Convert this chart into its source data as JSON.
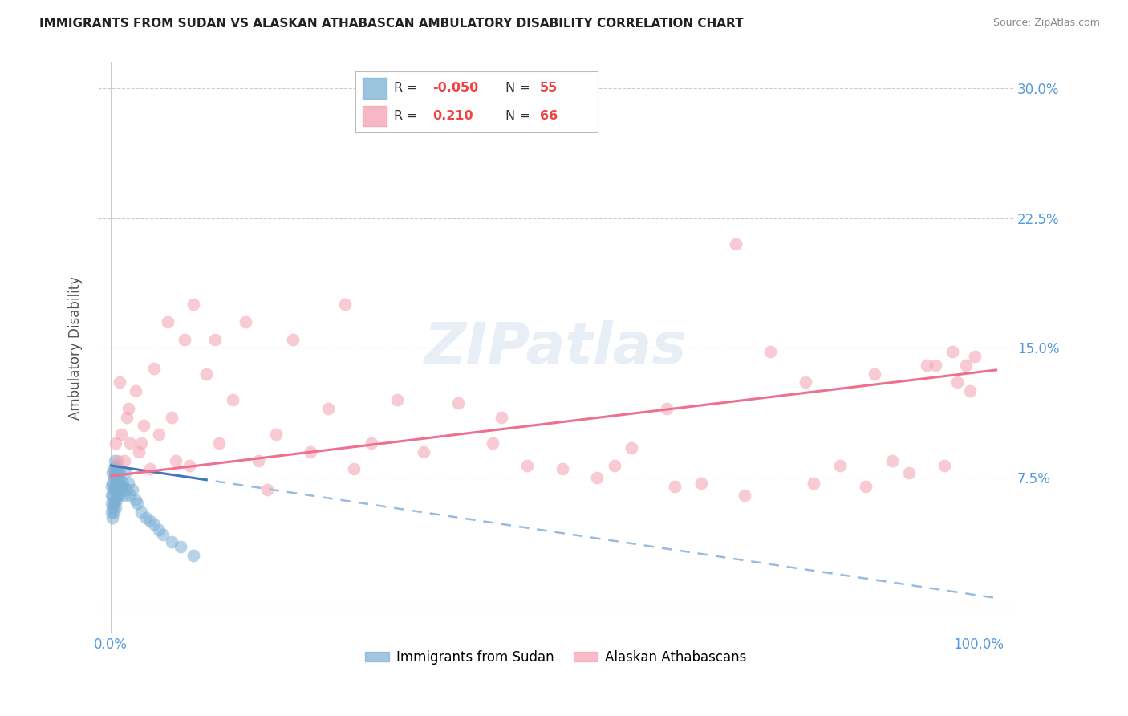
{
  "title": "IMMIGRANTS FROM SUDAN VS ALASKAN ATHABASCAN AMBULATORY DISABILITY CORRELATION CHART",
  "source": "Source: ZipAtlas.com",
  "ylabel": "Ambulatory Disability",
  "x_tick_labels": [
    "0.0%",
    "",
    "",
    "",
    "",
    "100.0%"
  ],
  "y_tick_labels": [
    "",
    "7.5%",
    "15.0%",
    "22.5%",
    "30.0%"
  ],
  "y_ticks": [
    0.0,
    0.075,
    0.15,
    0.225,
    0.3
  ],
  "xlim": [
    -0.015,
    1.04
  ],
  "ylim": [
    -0.015,
    0.315
  ],
  "blue_color": "#7BAFD4",
  "pink_color": "#F4A0B0",
  "blue_line_color": "#4477BB",
  "pink_line_color": "#EE7090",
  "dashed_color": "#99BBDD",
  "legend_R1": "-0.050",
  "legend_N1": "55",
  "legend_R2": "0.210",
  "legend_N2": "66",
  "legend_label1": "Immigrants from Sudan",
  "legend_label2": "Alaskan Athabascans",
  "blue_r": -0.05,
  "pink_r": 0.21,
  "blue_intercept": 0.082,
  "blue_slope": -0.075,
  "pink_intercept": 0.076,
  "pink_slope": 0.06,
  "blue_scatter_x": [
    0.001,
    0.001,
    0.001,
    0.001,
    0.002,
    0.002,
    0.002,
    0.002,
    0.002,
    0.003,
    0.003,
    0.003,
    0.003,
    0.003,
    0.004,
    0.004,
    0.004,
    0.004,
    0.005,
    0.005,
    0.005,
    0.005,
    0.006,
    0.006,
    0.006,
    0.007,
    0.007,
    0.007,
    0.008,
    0.008,
    0.009,
    0.009,
    0.01,
    0.01,
    0.011,
    0.012,
    0.013,
    0.014,
    0.015,
    0.016,
    0.018,
    0.02,
    0.022,
    0.025,
    0.028,
    0.03,
    0.035,
    0.04,
    0.045,
    0.05,
    0.055,
    0.06,
    0.07,
    0.08,
    0.095
  ],
  "blue_scatter_y": [
    0.07,
    0.065,
    0.06,
    0.055,
    0.078,
    0.072,
    0.065,
    0.058,
    0.052,
    0.08,
    0.075,
    0.068,
    0.06,
    0.055,
    0.085,
    0.078,
    0.07,
    0.062,
    0.082,
    0.075,
    0.068,
    0.058,
    0.078,
    0.07,
    0.062,
    0.08,
    0.072,
    0.065,
    0.078,
    0.068,
    0.075,
    0.065,
    0.078,
    0.068,
    0.072,
    0.07,
    0.068,
    0.072,
    0.065,
    0.078,
    0.068,
    0.072,
    0.065,
    0.068,
    0.062,
    0.06,
    0.055,
    0.052,
    0.05,
    0.048,
    0.045,
    0.042,
    0.038,
    0.035,
    0.03
  ],
  "pink_scatter_x": [
    0.005,
    0.01,
    0.015,
    0.018,
    0.022,
    0.028,
    0.032,
    0.038,
    0.045,
    0.055,
    0.065,
    0.075,
    0.085,
    0.095,
    0.11,
    0.125,
    0.14,
    0.155,
    0.17,
    0.19,
    0.21,
    0.23,
    0.25,
    0.27,
    0.3,
    0.33,
    0.36,
    0.4,
    0.44,
    0.48,
    0.52,
    0.56,
    0.6,
    0.64,
    0.68,
    0.72,
    0.76,
    0.8,
    0.84,
    0.87,
    0.9,
    0.92,
    0.94,
    0.96,
    0.975,
    0.985,
    0.99,
    0.995,
    0.008,
    0.012,
    0.02,
    0.035,
    0.05,
    0.07,
    0.09,
    0.12,
    0.18,
    0.28,
    0.45,
    0.58,
    0.65,
    0.73,
    0.81,
    0.88,
    0.95,
    0.97
  ],
  "pink_scatter_y": [
    0.095,
    0.13,
    0.085,
    0.11,
    0.095,
    0.125,
    0.09,
    0.105,
    0.08,
    0.1,
    0.165,
    0.085,
    0.155,
    0.175,
    0.135,
    0.095,
    0.12,
    0.165,
    0.085,
    0.1,
    0.155,
    0.09,
    0.115,
    0.175,
    0.095,
    0.12,
    0.09,
    0.118,
    0.095,
    0.082,
    0.08,
    0.075,
    0.092,
    0.115,
    0.072,
    0.21,
    0.148,
    0.13,
    0.082,
    0.07,
    0.085,
    0.078,
    0.14,
    0.082,
    0.13,
    0.14,
    0.125,
    0.145,
    0.085,
    0.1,
    0.115,
    0.095,
    0.138,
    0.11,
    0.082,
    0.155,
    0.068,
    0.08,
    0.11,
    0.082,
    0.07,
    0.065,
    0.072,
    0.135,
    0.14,
    0.148
  ]
}
